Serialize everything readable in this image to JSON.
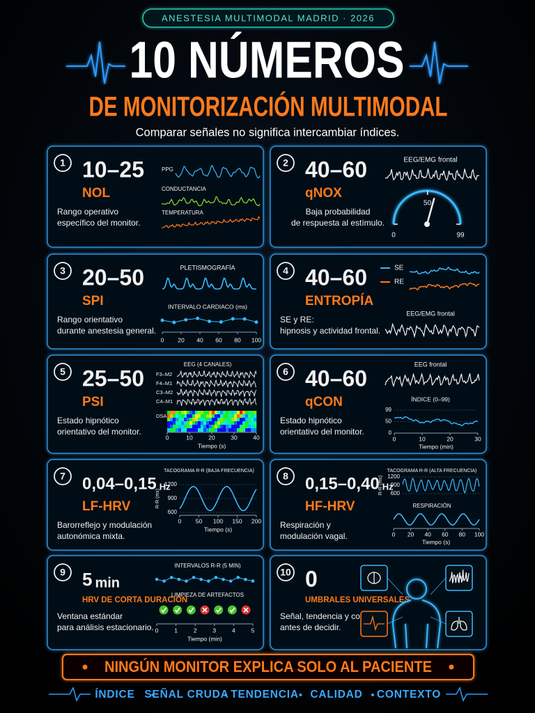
{
  "header": {
    "badge": "ANESTESIA MULTIMODAL MADRID · 2026",
    "title": "10 NÚMEROS",
    "subtitle": "DE MONITORIZACIÓN MULTIMODAL",
    "tagline": "Comparar señales no significa intercambiar índices."
  },
  "cards": [
    {
      "number": "1",
      "value": "10–25",
      "name": "NOL",
      "description": [
        "Rango operativo",
        "específico del monitor."
      ],
      "panel": {
        "labels": [
          "PPG",
          "CONDUCTANCIA",
          "TEMPERATURA"
        ]
      }
    },
    {
      "number": "2",
      "value": "40–60",
      "name": "qNOX",
      "description": [
        "Baja probabilidad",
        "de respuesta al estímulo."
      ],
      "panel": {
        "title": "EEG/EMG frontal",
        "gauge_ticks": [
          0,
          50,
          99
        ],
        "needle": 58
      }
    },
    {
      "number": "3",
      "value": "20–50",
      "name": "SPI",
      "description": [
        "Rango orientativo",
        "durante anestesia general."
      ],
      "panel": {
        "title": "PLETISMOGRAFÍA",
        "subtitle": "INTERVALO CARDIACO (ms)",
        "xticks": [
          0,
          20,
          40,
          60,
          80,
          100
        ]
      }
    },
    {
      "number": "4",
      "value": "40–60",
      "name": "ENTROPÍA",
      "description": [
        "SE y RE:",
        "hipnosis y actividad frontal."
      ],
      "panel": {
        "legend": [
          "SE",
          "RE"
        ],
        "title": "EEG/EMG frontal"
      }
    },
    {
      "number": "5",
      "value": "25–50",
      "name": "PSI",
      "description": [
        "Estado hipnótico",
        "orientativo del monitor."
      ],
      "panel": {
        "title": "EEG (4 CANALES)",
        "channels": [
          "F3–M2",
          "F4–M1",
          "C3–M2",
          "C4–M1"
        ],
        "dsa": "DSA",
        "xticks": [
          0,
          10,
          20,
          30,
          40
        ],
        "xlabel": "Tiempo (s)"
      }
    },
    {
      "number": "6",
      "value": "40–60",
      "name": "qCON",
      "description": [
        "Estado hipnótico",
        "orientativo del monitor."
      ],
      "panel": {
        "title": "EEG frontal",
        "subtitle": "ÍNDICE (0–99)",
        "yticks": [
          0,
          50,
          99
        ],
        "xticks": [
          0,
          10,
          20,
          30
        ],
        "xlabel": "Tiempo (min)"
      }
    },
    {
      "number": "7",
      "value": "0,04–0,15",
      "unit": "Hz",
      "name": "LF-HRV",
      "description": [
        "Barorreflejo y modulación",
        "autonómica mixta."
      ],
      "panel": {
        "title": "TACOGRAMA R-R (BAJA FRECUENCIA)",
        "ylabel": "R-R (ms)",
        "yticks": [
          600,
          900,
          1200
        ],
        "xticks": [
          0,
          50,
          100,
          150,
          200
        ],
        "xlabel": "Tiempo (s)"
      }
    },
    {
      "number": "8",
      "value": "0,15–0,40",
      "unit": "Hz",
      "name": "HF-HRV",
      "description": [
        "Respiración y",
        "modulación vagal."
      ],
      "panel": {
        "title": "TACOGRAMA R-R (ALTA FRECUENCIA)",
        "ylabel": "R-R (ms)",
        "yticks": [
          600,
          900,
          1200
        ],
        "subtitle": "RESPIRACIÓN",
        "xticks": [
          0,
          20,
          40,
          60,
          80,
          100
        ],
        "xlabel": "Tiempo (s)"
      }
    },
    {
      "number": "9",
      "value": "5",
      "unit": "min",
      "name": "HRV DE CORTA DURACIÓN",
      "description": [
        "Ventana estándar",
        "para análisis estacionario."
      ],
      "panel": {
        "title": "INTERVALOS R-R (5 MIN)",
        "subtitle": "LIMPIEZA DE ARTEFACTOS",
        "artifacts_ok": [
          true,
          true,
          true,
          false,
          true,
          true,
          false
        ],
        "xticks": [
          0,
          1,
          2,
          3,
          4,
          5
        ],
        "xlabel": "Tiempo (min)"
      }
    },
    {
      "number": "10",
      "value": "0",
      "name": "UMBRALES UNIVERSALES",
      "description": [
        "Señal, tendencia y contexto",
        "antes de decidir."
      ]
    }
  ],
  "footer": {
    "banner": "NINGÚN MONITOR EXPLICA SOLO AL PACIENTE",
    "keywords": [
      "ÍNDICE",
      "SEÑAL CRUDA",
      "TENDENCIA",
      "CALIDAD",
      "CONTEXTO"
    ]
  }
}
